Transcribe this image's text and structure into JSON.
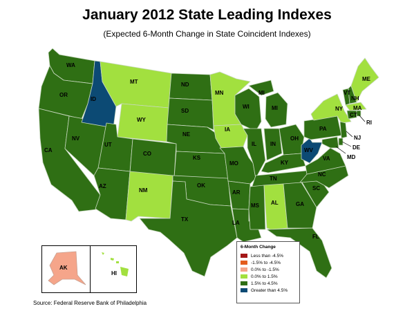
{
  "title": "January 2012 State Leading Indexes",
  "subtitle": "(Expected 6-Month Change in State Coincident Indexes)",
  "source": "Source: Federal Reserve Bank of Philadelphia",
  "colors": {
    "dark_red": "#a41818",
    "orange": "#e35d1e",
    "light_orange": "#f5a58a",
    "light_green": "#a2e03f",
    "dark_green": "#2f6f14",
    "navy": "#0c4a74"
  },
  "legend": {
    "title": "6-Month Change",
    "items": [
      {
        "label": "Less than -4.5%",
        "color": "#a41818"
      },
      {
        "label": "-1.5% to -4.5%",
        "color": "#e35d1e"
      },
      {
        "label": "0.0% to -1.5%",
        "color": "#f5a58a"
      },
      {
        "label": "0.0% to  1.5%",
        "color": "#a2e03f"
      },
      {
        "label": "1.5% to  4.5%",
        "color": "#2f6f14"
      },
      {
        "label": "Greater than 4.5%",
        "color": "#0c4a74"
      }
    ]
  },
  "states": {
    "WA": "1.5% to 4.5%",
    "OR": "1.5% to 4.5%",
    "CA": "1.5% to 4.5%",
    "NV": "1.5% to 4.5%",
    "ID": "Greater than 4.5%",
    "MT": "0.0% to 1.5%",
    "WY": "0.0% to 1.5%",
    "UT": "1.5% to 4.5%",
    "CO": "1.5% to 4.5%",
    "AZ": "1.5% to 4.5%",
    "NM": "0.0% to 1.5%",
    "ND": "1.5% to 4.5%",
    "SD": "1.5% to 4.5%",
    "NE": "1.5% to 4.5%",
    "KS": "1.5% to 4.5%",
    "OK": "1.5% to 4.5%",
    "TX": "1.5% to 4.5%",
    "MN": "0.0% to 1.5%",
    "IA": "0.0% to 1.5%",
    "MO": "1.5% to 4.5%",
    "AR": "1.5% to 4.5%",
    "LA": "1.5% to 4.5%",
    "WI": "1.5% to 4.5%",
    "IL": "1.5% to 4.5%",
    "MI": "1.5% to 4.5%",
    "IN": "1.5% to 4.5%",
    "OH": "1.5% to 4.5%",
    "KY": "1.5% to 4.5%",
    "TN": "1.5% to 4.5%",
    "MS": "1.5% to 4.5%",
    "AL": "0.0% to 1.5%",
    "GA": "1.5% to 4.5%",
    "FL": "1.5% to 4.5%",
    "SC": "1.5% to 4.5%",
    "NC": "1.5% to 4.5%",
    "VA": "1.5% to 4.5%",
    "WV": "Greater than 4.5%",
    "PA": "1.5% to 4.5%",
    "NY": "0.0% to 1.5%",
    "VT": "1.5% to 4.5%",
    "NH": "1.5% to 4.5%",
    "ME": "0.0% to 1.5%",
    "MA": "0.0% to 1.5%",
    "CT": "1.5% to 4.5%",
    "RI": "1.5% to 4.5%",
    "NJ": "1.5% to 4.5%",
    "DE": "1.5% to 4.5%",
    "MD": "1.5% to 4.5%",
    "AK": "0.0% to -1.5%",
    "HI": "0.0% to 1.5%"
  }
}
